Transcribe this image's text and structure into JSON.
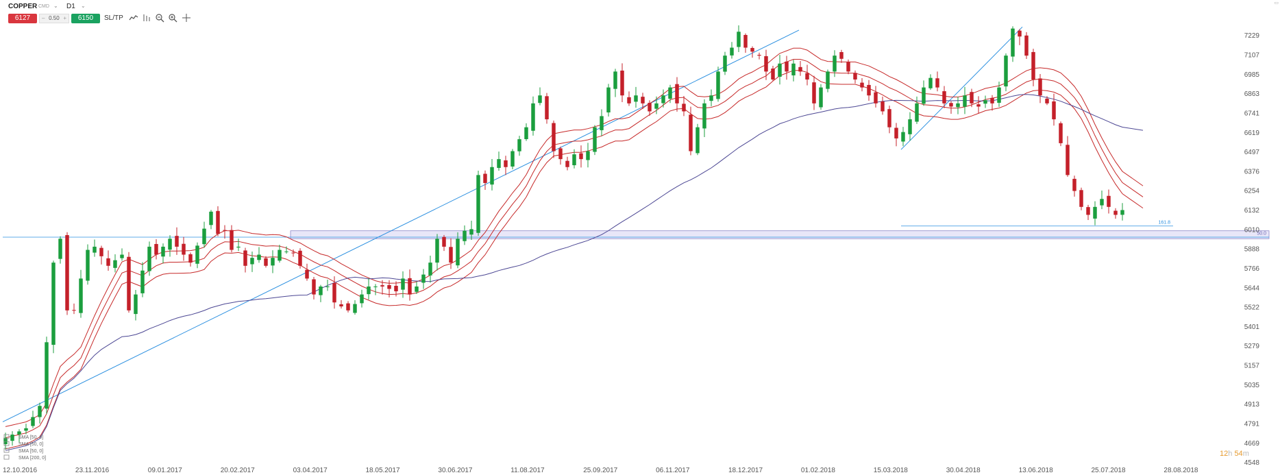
{
  "toolbar": {
    "symbol": "COPPER",
    "symbol_sub": "CMD",
    "timeframe": "D1",
    "sell_price": "6127",
    "spread": "0.50",
    "buy_price": "6150",
    "sltp_label": "SL/TP",
    "tools": [
      "chart-type-icon",
      "indicators-icon",
      "zoom-out-icon",
      "zoom-in-icon",
      "crosshair-icon"
    ]
  },
  "timer": {
    "hours": "12",
    "h": "h",
    "minutes": "54",
    "m": "m"
  },
  "colors": {
    "bull": "#1b9e3e",
    "bear": "#c4202a",
    "trendline": "#2a8fe0",
    "envelope": "#c62828",
    "sma200": "#4b4693",
    "zone": "#dedcf5"
  },
  "chart_data": {
    "type": "candlestick",
    "symbol": "COPPER",
    "timeframe": "D1",
    "ylim": [
      4548,
      7290
    ],
    "y_ticks": [
      7229,
      7107,
      6985,
      6863,
      6741,
      6619,
      6497,
      6376,
      6254,
      6132,
      6010,
      5888,
      5766,
      5644,
      5522,
      5401,
      5279,
      5157,
      5035,
      4913,
      4791,
      4669,
      4548
    ],
    "x_ticks": [
      "12.10.2016",
      "23.11.2016",
      "09.01.2017",
      "20.02.2017",
      "03.04.2017",
      "18.05.2017",
      "30.06.2017",
      "11.08.2017",
      "25.09.2017",
      "06.11.2017",
      "18.12.2017",
      "01.02.2018",
      "15.03.2018",
      "30.04.2018",
      "13.06.2018",
      "25.07.2018",
      "28.08.2018"
    ],
    "price_path": [
      [
        0,
        4700
      ],
      [
        3,
        4760
      ],
      [
        5,
        4900
      ],
      [
        6,
        5300
      ],
      [
        7,
        5800
      ],
      [
        8,
        5950
      ],
      [
        9,
        5500
      ],
      [
        10,
        5500
      ],
      [
        11,
        5700
      ],
      [
        12,
        5880
      ],
      [
        13,
        5900
      ],
      [
        15,
        5780
      ],
      [
        17,
        5850
      ],
      [
        18,
        5500
      ],
      [
        19,
        5600
      ],
      [
        20,
        5750
      ],
      [
        21,
        5900
      ],
      [
        22,
        5850
      ],
      [
        24,
        5950
      ],
      [
        26,
        5850
      ],
      [
        27,
        5800
      ],
      [
        30,
        6120
      ],
      [
        31,
        5980
      ],
      [
        32,
        6000
      ],
      [
        33,
        5880
      ],
      [
        34,
        5900
      ],
      [
        35,
        5780
      ],
      [
        36,
        5830
      ],
      [
        37,
        5850
      ],
      [
        38,
        5780
      ],
      [
        40,
        5880
      ],
      [
        42,
        5860
      ],
      [
        44,
        5700
      ],
      [
        45,
        5600
      ],
      [
        46,
        5650
      ],
      [
        47,
        5650
      ],
      [
        48,
        5550
      ],
      [
        50,
        5500
      ],
      [
        51,
        5540
      ],
      [
        52,
        5600
      ],
      [
        53,
        5650
      ],
      [
        55,
        5650
      ],
      [
        57,
        5620
      ],
      [
        58,
        5700
      ],
      [
        59,
        5600
      ],
      [
        60,
        5650
      ],
      [
        62,
        5800
      ],
      [
        63,
        5950
      ],
      [
        64,
        5900
      ],
      [
        65,
        5800
      ],
      [
        66,
        5950
      ],
      [
        67,
        6000
      ],
      [
        68,
        6010
      ],
      [
        69,
        6350
      ],
      [
        70,
        6300
      ],
      [
        71,
        6400
      ],
      [
        72,
        6450
      ],
      [
        73,
        6400
      ],
      [
        74,
        6500
      ],
      [
        76,
        6650
      ],
      [
        77,
        6800
      ],
      [
        78,
        6850
      ],
      [
        79,
        6700
      ],
      [
        80,
        6500
      ],
      [
        81,
        6450
      ],
      [
        82,
        6400
      ],
      [
        83,
        6480
      ],
      [
        84,
        6450
      ],
      [
        85,
        6500
      ],
      [
        86,
        6650
      ],
      [
        87,
        6720
      ],
      [
        88,
        6900
      ],
      [
        89,
        7000
      ],
      [
        90,
        6850
      ],
      [
        91,
        6800
      ],
      [
        92,
        6850
      ],
      [
        93,
        6800
      ],
      [
        94,
        6750
      ],
      [
        95,
        6800
      ],
      [
        96,
        6850
      ],
      [
        97,
        6900
      ],
      [
        98,
        6800
      ],
      [
        99,
        6750
      ],
      [
        100,
        6500
      ],
      [
        101,
        6650
      ],
      [
        102,
        6800
      ],
      [
        103,
        6850
      ],
      [
        104,
        7000
      ],
      [
        105,
        7100
      ],
      [
        106,
        7150
      ],
      [
        107,
        7250
      ],
      [
        108,
        7150
      ],
      [
        110,
        7100
      ],
      [
        111,
        7000
      ],
      [
        112,
        6950
      ],
      [
        113,
        7050
      ],
      [
        114,
        7000
      ],
      [
        115,
        7050
      ],
      [
        116,
        7000
      ],
      [
        117,
        6950
      ],
      [
        118,
        6800
      ],
      [
        119,
        6900
      ],
      [
        120,
        7000
      ],
      [
        121,
        7100
      ],
      [
        122,
        7080
      ],
      [
        123,
        7000
      ],
      [
        124,
        6950
      ],
      [
        125,
        6900
      ],
      [
        126,
        6850
      ],
      [
        127,
        6800
      ],
      [
        128,
        6750
      ],
      [
        129,
        6650
      ],
      [
        130,
        6580
      ],
      [
        131,
        6620
      ],
      [
        132,
        6700
      ],
      [
        133,
        6800
      ],
      [
        134,
        6900
      ],
      [
        135,
        6960
      ],
      [
        136,
        6900
      ],
      [
        137,
        6800
      ],
      [
        138,
        6780
      ],
      [
        139,
        6800
      ],
      [
        140,
        6850
      ],
      [
        141,
        6800
      ],
      [
        142,
        6780
      ],
      [
        143,
        6820
      ],
      [
        144,
        6800
      ],
      [
        145,
        6900
      ],
      [
        146,
        7100
      ],
      [
        147,
        7270
      ],
      [
        148,
        7220
      ],
      [
        149,
        7100
      ],
      [
        150,
        6950
      ],
      [
        151,
        6850
      ],
      [
        152,
        6800
      ],
      [
        153,
        6700
      ],
      [
        154,
        6550
      ],
      [
        155,
        6350
      ],
      [
        156,
        6250
      ],
      [
        157,
        6150
      ],
      [
        158,
        6100
      ],
      [
        159,
        6150
      ],
      [
        160,
        6200
      ],
      [
        161,
        6150
      ],
      [
        162,
        6100
      ],
      [
        163,
        6130
      ]
    ],
    "overlays": {
      "envelope": "3 red moving-average lines (MA channel)",
      "sma_200": "blue SMA line"
    },
    "legend_entries": [
      "SMA [50, 0]",
      "SMA [50, 0]",
      "SMA [50, 0]",
      "SMA [200, 0]"
    ],
    "horizontal_line": 5960,
    "zone": {
      "from": 5950,
      "to": 6000,
      "label": "50.0"
    },
    "level_label": "161.8",
    "grid": false,
    "legend": "bottom-left"
  }
}
